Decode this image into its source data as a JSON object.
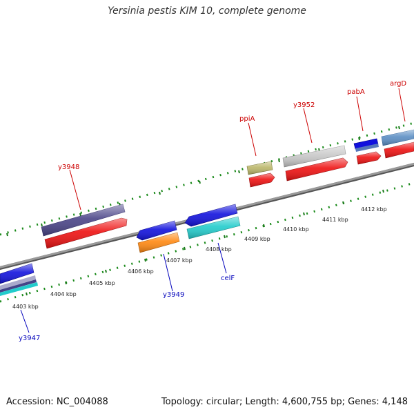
{
  "title": "Yersinia pestis KIM 10, complete genome",
  "accession": "Accession: NC_004088",
  "info": "Topology: circular; Length: 4,600,755 bp; Genes: 4,148",
  "colors": {
    "label_forward": "#cc0000",
    "label_reverse": "#0000bb",
    "tick": "#1a7a1a",
    "backbone": "#8a8a8a"
  },
  "ticks": [
    "4403 kbp",
    "4404 kbp",
    "4405 kbp",
    "4406 kbp",
    "4407 kbp",
    "4408 kbp",
    "4409 kbp",
    "4410 kbp",
    "4411 kbp",
    "4412 kbp"
  ],
  "gene_labels": [
    "y3948",
    "ppiA",
    "y3952",
    "pabA",
    "argD",
    "y3949",
    "celF",
    "y3947"
  ]
}
